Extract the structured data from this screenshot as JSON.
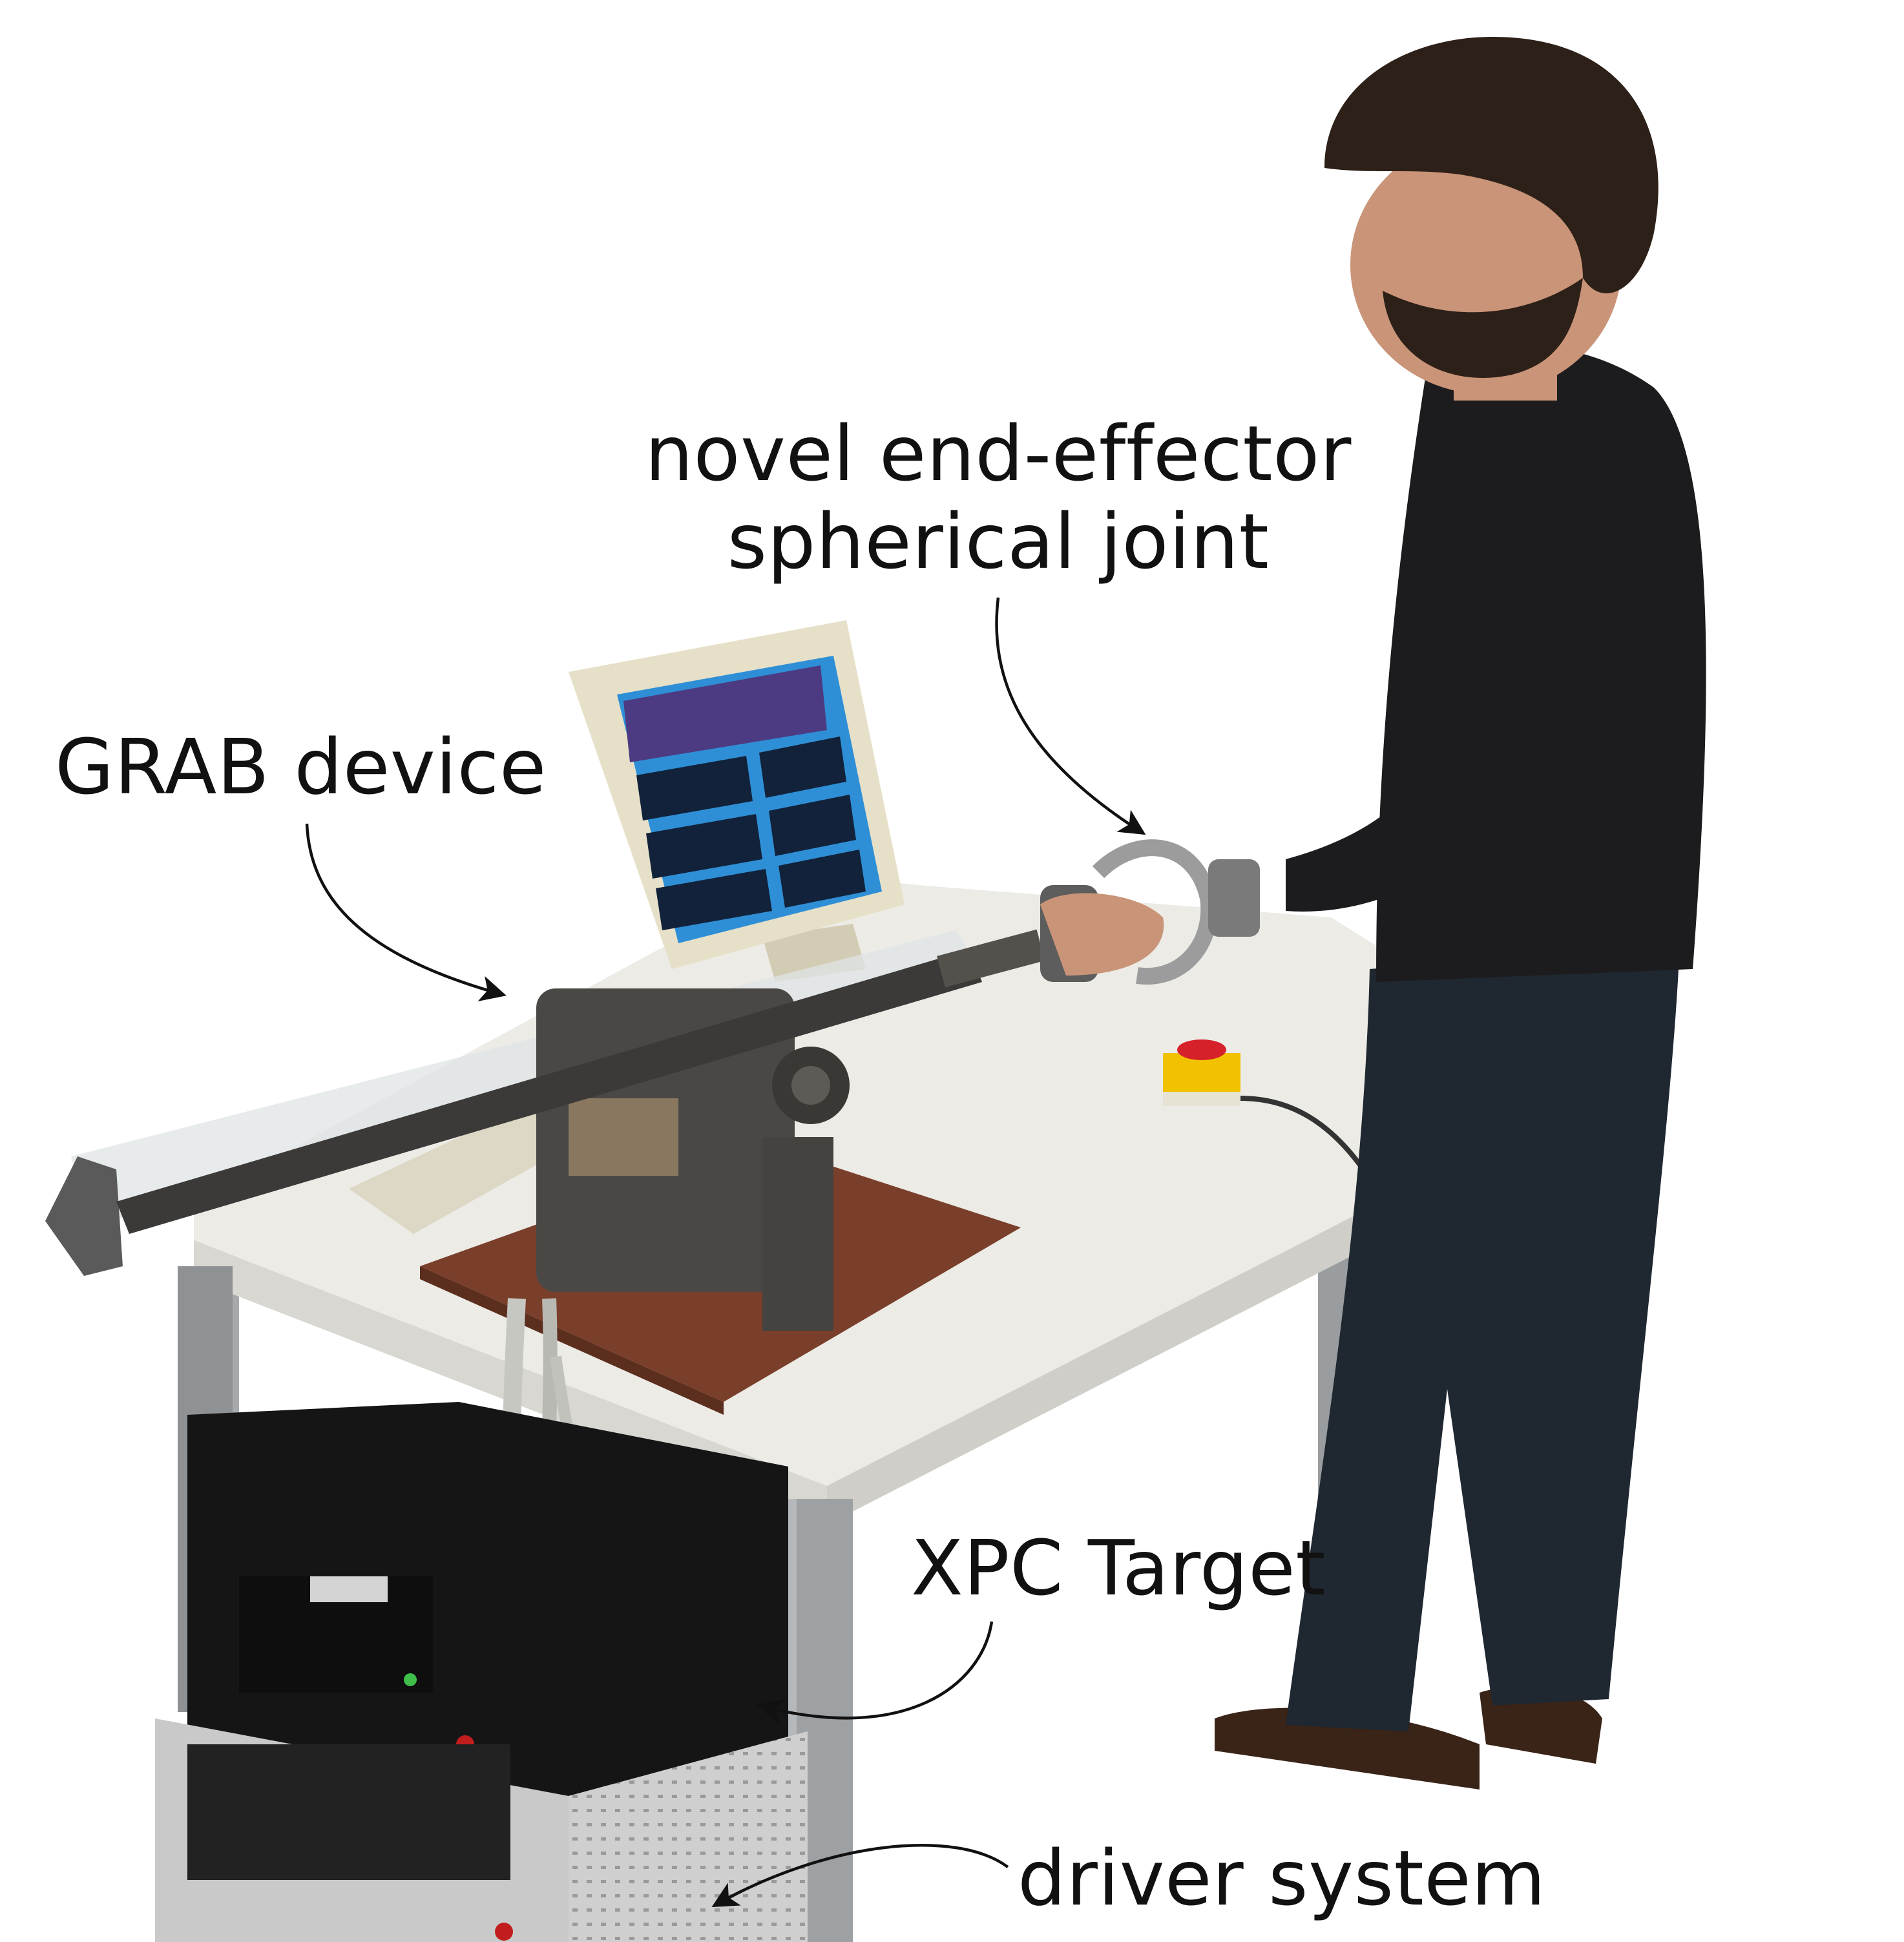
{
  "labels": {
    "end_effector_line1": "novel end-effector",
    "end_effector_line2": "spherical joint",
    "grab_device": "GRAB device",
    "xpc_target": "XPC Target",
    "driver_system": "driver system"
  },
  "colors": {
    "background": "#ffffff",
    "text": "#111111",
    "table_top": "#ecebe6",
    "table_legs": "#9a9d9f",
    "robot_metal": "#4a4845",
    "wooden_base": "#7a3f2a",
    "monitor_bezel": "#e6e0c8",
    "monitor_screen": "#2f8fd6",
    "sweater": "#1c1c1e",
    "jeans": "#1f2730",
    "hair": "#2d2018",
    "skin": "#c99478",
    "shoes": "#3a2418",
    "emergency_button": "#d6202a",
    "button_box": "#f2c200",
    "rack_case": "#151515",
    "driver_case": "#c9c9c9"
  }
}
